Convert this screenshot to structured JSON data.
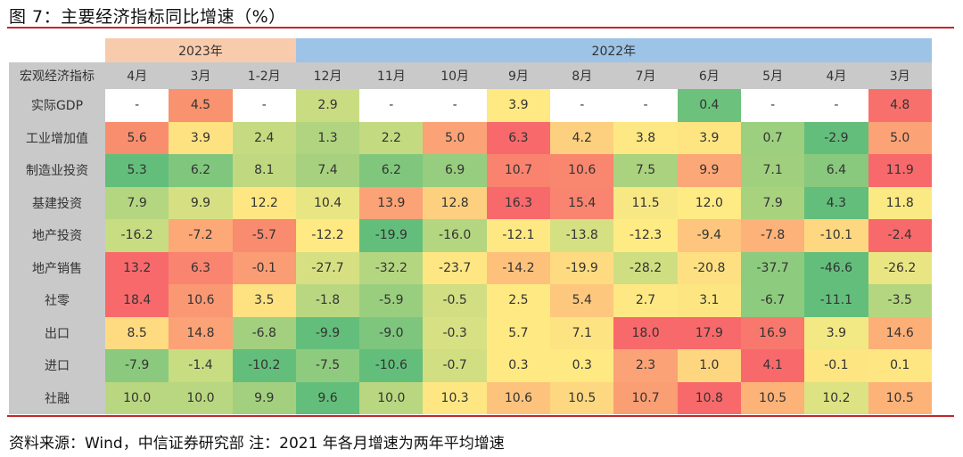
{
  "title": "图 7：主要经济指标同比增速（%）",
  "source": "资料来源：Wind，中信证券研究部  注：2021 年各月增速为两年平均增速",
  "chart_data": {
    "type": "heatmap",
    "title": "图 7：主要经济指标同比增速（%）",
    "corner_label": "宏观经济指标",
    "year_groups": [
      {
        "label": "2023年",
        "span": 3,
        "color": "#f8cbad"
      },
      {
        "label": "2022年",
        "span": 10,
        "color": "#9dc3e6"
      }
    ],
    "columns": [
      "4月",
      "3月",
      "1-2月",
      "12月",
      "11月",
      "10月",
      "9月",
      "8月",
      "7月",
      "6月",
      "5月",
      "4月",
      "3月"
    ],
    "rows": [
      {
        "label": "实际GDP",
        "values": [
          "-",
          "4.5",
          "-",
          "2.9",
          "-",
          "-",
          "3.9",
          "-",
          "-",
          "0.4",
          "-",
          "-",
          "4.8"
        ],
        "colors": [
          "#ffffff",
          "#f8926f",
          "#ffffff",
          "#c9dc81",
          "#ffffff",
          "#ffffff",
          "#fee983",
          "#ffffff",
          "#ffffff",
          "#6cc17c",
          "#ffffff",
          "#ffffff",
          "#f8706c"
        ]
      },
      {
        "label": "工业增加值",
        "values": [
          "5.6",
          "3.9",
          "2.4",
          "1.3",
          "2.2",
          "5.0",
          "6.3",
          "4.2",
          "3.8",
          "3.9",
          "0.7",
          "-2.9",
          "5.0"
        ],
        "colors": [
          "#f98e6f",
          "#fee282",
          "#c6db81",
          "#b0d47f",
          "#c4da81",
          "#fba276",
          "#f8696b",
          "#fdd07f",
          "#fee883",
          "#fee582",
          "#9ccf7e",
          "#63be7b",
          "#fba276"
        ]
      },
      {
        "label": "制造业投资",
        "values": [
          "5.3",
          "6.2",
          "8.1",
          "7.4",
          "6.2",
          "6.9",
          "10.7",
          "10.6",
          "7.5",
          "9.9",
          "7.1",
          "6.4",
          "11.9"
        ],
        "colors": [
          "#63be7b",
          "#80c77d",
          "#c0d980",
          "#a7d17e",
          "#80c77d",
          "#97cd7e",
          "#f9836e",
          "#f9866f",
          "#abd27f",
          "#fba777",
          "#a0cf7e",
          "#88c97d",
          "#f8696b"
        ]
      },
      {
        "label": "基建投资",
        "values": [
          "7.9",
          "9.9",
          "12.2",
          "10.4",
          "13.9",
          "12.8",
          "16.3",
          "15.4",
          "11.5",
          "12.0",
          "7.9",
          "4.3",
          "11.8"
        ],
        "colors": [
          "#b5d680",
          "#d6e082",
          "#fee783",
          "#e8e583",
          "#fba276",
          "#fdd07f",
          "#f8696b",
          "#f98470",
          "#f8e883",
          "#ffeb84",
          "#a9d27f",
          "#63be7b",
          "#fbe983"
        ]
      },
      {
        "label": "地产投资",
        "values": [
          "-16.2",
          "-7.2",
          "-5.7",
          "-12.2",
          "-19.9",
          "-16.0",
          "-12.1",
          "-13.8",
          "-12.3",
          "-9.4",
          "-7.8",
          "-10.1",
          "-2.4"
        ],
        "colors": [
          "#c8dc81",
          "#fca877",
          "#f98b6f",
          "#fee983",
          "#63be7b",
          "#b5d680",
          "#fee883",
          "#d5e082",
          "#ffeb84",
          "#fdc57d",
          "#fcb279",
          "#fed880",
          "#f8696b"
        ]
      },
      {
        "label": "地产销售",
        "values": [
          "13.2",
          "6.3",
          "-0.1",
          "-27.7",
          "-32.2",
          "-23.7",
          "-14.2",
          "-19.9",
          "-28.2",
          "-20.8",
          "-37.7",
          "-46.6",
          "-26.2"
        ],
        "colors": [
          "#f8696b",
          "#f98470",
          "#fa9c74",
          "#d6e082",
          "#b5d680",
          "#fee683",
          "#fdc17c",
          "#fedb81",
          "#d0de82",
          "#fee082",
          "#8dcb7e",
          "#63be7b",
          "#eae583"
        ]
      },
      {
        "label": "社零",
        "values": [
          "18.4",
          "10.6",
          "3.5",
          "-1.8",
          "-5.9",
          "-0.5",
          "2.5",
          "5.4",
          "2.7",
          "3.1",
          "-6.7",
          "-11.1",
          "-3.5"
        ],
        "colors": [
          "#f8696b",
          "#fa9873",
          "#fee282",
          "#b9d780",
          "#99ce7f",
          "#d1de82",
          "#fee983",
          "#fdc77d",
          "#fee883",
          "#fde582",
          "#8dcb7e",
          "#63be7b",
          "#b5d680"
        ]
      },
      {
        "label": "出口",
        "values": [
          "8.5",
          "14.8",
          "-6.8",
          "-9.9",
          "-9.0",
          "-0.3",
          "5.7",
          "7.1",
          "18.0",
          "17.9",
          "16.9",
          "3.9",
          "14.6"
        ],
        "colors": [
          "#fedb81",
          "#fba276",
          "#a2d07f",
          "#63be7b",
          "#7ec57d",
          "#d7e082",
          "#fee983",
          "#fee382",
          "#f8696b",
          "#f8696b",
          "#f8786d",
          "#f2e884",
          "#fdaf78"
        ]
      },
      {
        "label": "进口",
        "values": [
          "-7.9",
          "-1.4",
          "-10.2",
          "-7.5",
          "-10.6",
          "-0.7",
          "0.3",
          "0.3",
          "2.3",
          "1.0",
          "4.1",
          "-0.1",
          "0.1"
        ],
        "colors": [
          "#8bca7e",
          "#c8dc81",
          "#63be7b",
          "#8fcb7e",
          "#63be7b",
          "#d1de82",
          "#fee983",
          "#fee983",
          "#fba276",
          "#fed680",
          "#f8696b",
          "#fde582",
          "#fee783"
        ]
      },
      {
        "label": "社融",
        "values": [
          "10.0",
          "10.0",
          "9.9",
          "9.6",
          "10.0",
          "10.3",
          "10.6",
          "10.5",
          "10.7",
          "10.8",
          "10.5",
          "10.2",
          "10.5"
        ],
        "colors": [
          "#b9d780",
          "#b9d780",
          "#a3d07f",
          "#63be7b",
          "#b9d780",
          "#fee783",
          "#fdc37c",
          "#fed880",
          "#fa9e74",
          "#f8696b",
          "#fdb278",
          "#dde282",
          "#fdb278"
        ]
      }
    ]
  }
}
